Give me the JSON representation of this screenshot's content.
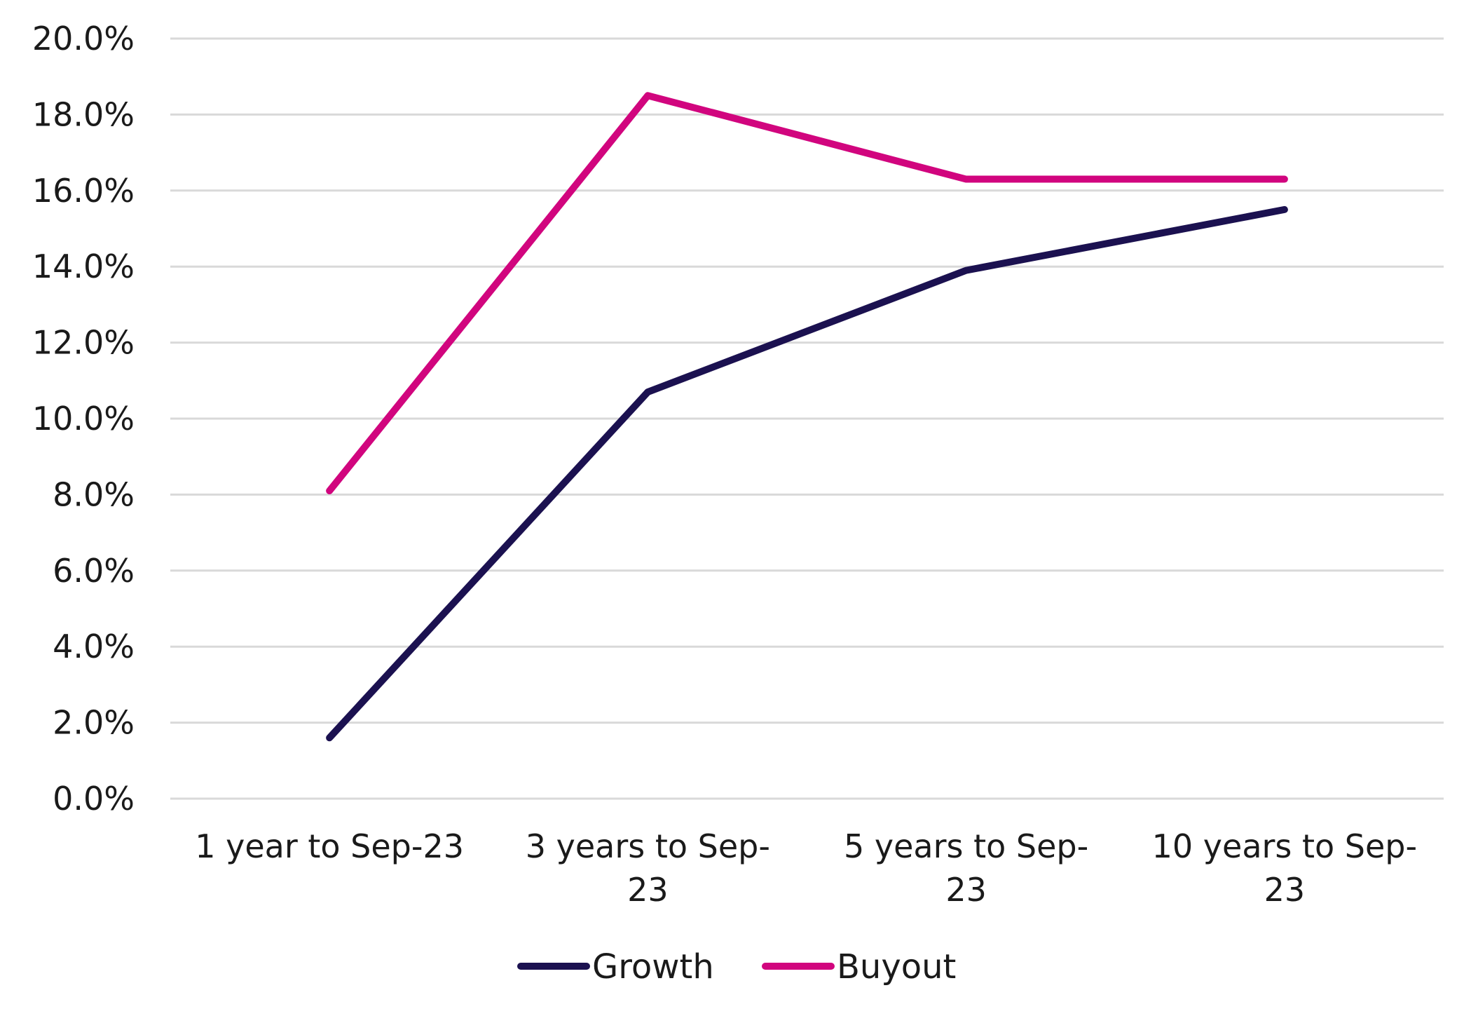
{
  "chart_data": {
    "type": "line",
    "title": "",
    "xlabel": "",
    "ylabel": "",
    "categories": [
      [
        "1 year to Sep-23"
      ],
      [
        "3 years to Sep-",
        "23"
      ],
      [
        "5 years to Sep-",
        "23"
      ],
      [
        "10 years to Sep-",
        "23"
      ]
    ],
    "series": [
      {
        "name": "Growth",
        "color": "#1b1150",
        "values": [
          1.6,
          10.7,
          13.9,
          15.5
        ]
      },
      {
        "name": "Buyout",
        "color": "#d1057e",
        "values": [
          8.1,
          18.5,
          16.3,
          16.3
        ]
      }
    ],
    "ylim": [
      0,
      20
    ],
    "yticks": [
      "0.0%",
      "2.0%",
      "4.0%",
      "6.0%",
      "8.0%",
      "10.0%",
      "12.0%",
      "14.0%",
      "16.0%",
      "18.0%",
      "20.0%"
    ],
    "grid": true,
    "legend_position": "bottom"
  }
}
